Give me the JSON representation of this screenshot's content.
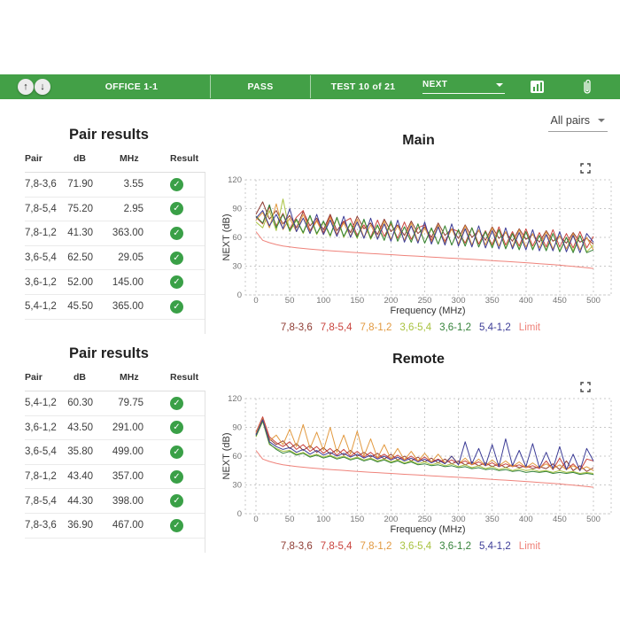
{
  "toolbar": {
    "office": "OFFICE 1-1",
    "status": "PASS",
    "test_counter": "TEST 10 of 21",
    "measurement_select": {
      "value": "NEXT"
    },
    "bg_color": "#43a047"
  },
  "icons": {
    "nav_up": "↑",
    "nav_down": "↓",
    "pass_check": "✓"
  },
  "pairs_filter": {
    "value": "All pairs"
  },
  "colors": {
    "accent_green": "#43a047",
    "pass_badge": "#3aa047",
    "limit_line": "#ef837b"
  },
  "tables": [
    {
      "title": "Pair results",
      "columns": [
        "Pair",
        "dB",
        "MHz",
        "Result"
      ],
      "rows": [
        {
          "pair": "7,8-3,6",
          "db": "71.90",
          "mhz": "3.55",
          "result": "pass"
        },
        {
          "pair": "7,8-5,4",
          "db": "75.20",
          "mhz": "2.95",
          "result": "pass"
        },
        {
          "pair": "7,8-1,2",
          "db": "41.30",
          "mhz": "363.00",
          "result": "pass"
        },
        {
          "pair": "3,6-5,4",
          "db": "62.50",
          "mhz": "29.05",
          "result": "pass"
        },
        {
          "pair": "3,6-1,2",
          "db": "52.00",
          "mhz": "145.00",
          "result": "pass"
        },
        {
          "pair": "5,4-1,2",
          "db": "45.50",
          "mhz": "365.00",
          "result": "pass"
        }
      ]
    },
    {
      "title": "Pair results",
      "columns": [
        "Pair",
        "dB",
        "MHz",
        "Result"
      ],
      "rows": [
        {
          "pair": "5,4-1,2",
          "db": "60.30",
          "mhz": "79.75",
          "result": "pass"
        },
        {
          "pair": "3,6-1,2",
          "db": "43.50",
          "mhz": "291.00",
          "result": "pass"
        },
        {
          "pair": "3,6-5,4",
          "db": "35.80",
          "mhz": "499.00",
          "result": "pass"
        },
        {
          "pair": "7,8-1,2",
          "db": "43.40",
          "mhz": "357.00",
          "result": "pass"
        },
        {
          "pair": "7,8-5,4",
          "db": "44.30",
          "mhz": "398.00",
          "result": "pass"
        },
        {
          "pair": "7,8-3,6",
          "db": "36.90",
          "mhz": "467.00",
          "result": "pass"
        }
      ]
    }
  ],
  "chart_data": [
    {
      "type": "line",
      "title": "Main",
      "xlabel": "Frequency (MHz)",
      "ylabel": "NEXT (dB)",
      "xlim": [
        0,
        500
      ],
      "ylim": [
        0,
        120
      ],
      "xticks": [
        0,
        50,
        100,
        150,
        200,
        250,
        300,
        350,
        400,
        450,
        500
      ],
      "yticks": [
        0,
        30,
        60,
        90,
        120
      ],
      "grid": "dotted",
      "legend_position": "bottom",
      "x": [
        0,
        10,
        20,
        30,
        40,
        50,
        60,
        70,
        80,
        90,
        100,
        110,
        120,
        130,
        140,
        150,
        160,
        170,
        180,
        190,
        200,
        210,
        220,
        230,
        240,
        250,
        260,
        270,
        280,
        290,
        300,
        310,
        320,
        330,
        340,
        350,
        360,
        370,
        380,
        390,
        400,
        410,
        420,
        430,
        440,
        450,
        460,
        470,
        480,
        490,
        500
      ],
      "series": [
        {
          "name": "7,8-3,6",
          "color": "#8e3b32",
          "values": [
            84,
            97,
            79,
            88,
            74,
            83,
            70,
            87,
            72,
            80,
            68,
            84,
            67,
            77,
            65,
            82,
            69,
            75,
            63,
            79,
            66,
            73,
            62,
            77,
            64,
            71,
            60,
            75,
            62,
            69,
            59,
            73,
            60,
            67,
            57,
            71,
            59,
            65,
            56,
            69,
            58,
            63,
            55,
            67,
            56,
            61,
            54,
            65,
            55,
            59,
            53
          ]
        },
        {
          "name": "7,8-5,4",
          "color": "#c9423c",
          "values": [
            81,
            74,
            92,
            72,
            85,
            69,
            81,
            88,
            67,
            78,
            65,
            82,
            63,
            76,
            80,
            62,
            73,
            60,
            78,
            61,
            74,
            59,
            76,
            58,
            70,
            73,
            57,
            71,
            56,
            69,
            66,
            54,
            70,
            53,
            67,
            52,
            71,
            52,
            66,
            51,
            69,
            51,
            65,
            50,
            68,
            50,
            64,
            49,
            66,
            49,
            61
          ]
        },
        {
          "name": "7,8-1,2",
          "color": "#e2993f",
          "values": [
            78,
            86,
            70,
            95,
            68,
            80,
            66,
            84,
            65,
            77,
            63,
            81,
            62,
            75,
            61,
            79,
            60,
            73,
            59,
            77,
            58,
            72,
            57,
            75,
            56,
            70,
            55,
            73,
            54,
            69,
            53,
            72,
            52,
            68,
            52,
            70,
            51,
            66,
            50,
            68,
            50,
            64,
            49,
            66,
            48,
            62,
            48,
            64,
            47,
            60,
            47
          ]
        },
        {
          "name": "3,6-5,4",
          "color": "#a8c23f",
          "values": [
            76,
            70,
            88,
            67,
            100,
            66,
            78,
            64,
            82,
            63,
            76,
            61,
            80,
            60,
            74,
            59,
            78,
            58,
            72,
            57,
            76,
            56,
            71,
            55,
            74,
            54,
            69,
            53,
            72,
            52,
            68,
            51,
            70,
            50,
            66,
            50,
            68,
            49,
            64,
            48,
            66,
            48,
            62,
            47,
            64,
            46,
            60,
            46,
            62,
            45,
            52
          ]
        },
        {
          "name": "3,6-1,2",
          "color": "#35823a",
          "values": [
            82,
            75,
            94,
            70,
            84,
            67,
            79,
            65,
            83,
            64,
            77,
            62,
            81,
            61,
            75,
            60,
            79,
            59,
            73,
            57,
            77,
            56,
            71,
            55,
            74,
            54,
            70,
            53,
            72,
            52,
            68,
            51,
            70,
            50,
            66,
            49,
            68,
            48,
            64,
            47,
            66,
            47,
            62,
            46,
            64,
            45,
            60,
            44,
            62,
            44,
            47
          ]
        },
        {
          "name": "5,4-1,2",
          "color": "#3c3c96",
          "values": [
            80,
            88,
            72,
            84,
            69,
            90,
            66,
            80,
            64,
            84,
            63,
            78,
            61,
            82,
            60,
            76,
            59,
            80,
            58,
            74,
            56,
            78,
            55,
            72,
            54,
            76,
            53,
            71,
            52,
            74,
            51,
            69,
            50,
            72,
            49,
            67,
            48,
            70,
            48,
            65,
            47,
            68,
            46,
            63,
            46,
            66,
            45,
            62,
            44,
            64,
            55
          ]
        },
        {
          "name": "Limit",
          "color": "#ef837b",
          "is_limit": true,
          "values": [
            66,
            57,
            54.5,
            52.5,
            51,
            50,
            49.2,
            48.5,
            47.8,
            47.2,
            46.6,
            46.1,
            45.6,
            45.1,
            44.6,
            44.1,
            43.7,
            43.2,
            42.8,
            42.4,
            42,
            41.5,
            41.1,
            40.7,
            40.3,
            39.9,
            39.5,
            39.1,
            38.7,
            38.3,
            37.9,
            37.5,
            37.1,
            36.7,
            36.3,
            35.8,
            35.4,
            35,
            34.5,
            34.1,
            33.6,
            33.1,
            32.6,
            32.1,
            31.6,
            31,
            30.4,
            29.8,
            29.1,
            28.4,
            27.6
          ]
        }
      ]
    },
    {
      "type": "line",
      "title": "Remote",
      "xlabel": "Frequency (MHz)",
      "ylabel": "NEXT (dB)",
      "xlim": [
        0,
        500
      ],
      "ylim": [
        0,
        120
      ],
      "xticks": [
        0,
        50,
        100,
        150,
        200,
        250,
        300,
        350,
        400,
        450,
        500
      ],
      "yticks": [
        0,
        30,
        60,
        90,
        120
      ],
      "grid": "dotted",
      "legend_position": "bottom",
      "x": [
        0,
        10,
        20,
        30,
        40,
        50,
        60,
        70,
        80,
        90,
        100,
        110,
        120,
        130,
        140,
        150,
        160,
        170,
        180,
        190,
        200,
        210,
        220,
        230,
        240,
        250,
        260,
        270,
        280,
        290,
        300,
        310,
        320,
        330,
        340,
        350,
        360,
        370,
        380,
        390,
        400,
        410,
        420,
        430,
        440,
        450,
        460,
        470,
        480,
        490,
        500
      ],
      "series": [
        {
          "name": "7,8-3,6",
          "color": "#8e3b32",
          "values": [
            83,
            100,
            78,
            72,
            76,
            68,
            73,
            66,
            71,
            64,
            69,
            62,
            67,
            61,
            66,
            60,
            64,
            59,
            63,
            57,
            62,
            56,
            60,
            55,
            59,
            54,
            58,
            53,
            57,
            52,
            55,
            51,
            54,
            50,
            53,
            49,
            52,
            48,
            51,
            48,
            50,
            47,
            49,
            47,
            52,
            46,
            55,
            45,
            50,
            44,
            48
          ]
        },
        {
          "name": "7,8-5,4",
          "color": "#c9423c",
          "values": [
            85,
            101,
            80,
            74,
            70,
            75,
            67,
            72,
            65,
            70,
            63,
            68,
            61,
            67,
            60,
            65,
            59,
            64,
            58,
            62,
            57,
            61,
            56,
            60,
            55,
            59,
            54,
            57,
            53,
            56,
            52,
            55,
            51,
            54,
            50,
            53,
            49,
            52,
            49,
            51,
            48,
            50,
            47,
            55,
            46,
            58,
            46,
            52,
            45,
            57,
            55
          ]
        },
        {
          "name": "7,8-1,2",
          "color": "#e2993f",
          "values": [
            84,
            99,
            76,
            82,
            72,
            88,
            70,
            93,
            68,
            85,
            66,
            90,
            64,
            82,
            62,
            86,
            60,
            78,
            58,
            72,
            57,
            68,
            56,
            65,
            55,
            63,
            54,
            62,
            53,
            60,
            52,
            58,
            51,
            57,
            50,
            56,
            50,
            55,
            49,
            54,
            48,
            53,
            48,
            52,
            47,
            51,
            46,
            50,
            46,
            49,
            45
          ]
        },
        {
          "name": "3,6-5,4",
          "color": "#a8c23f",
          "values": [
            80,
            96,
            72,
            68,
            65,
            66,
            62,
            64,
            60,
            62,
            59,
            61,
            58,
            60,
            57,
            59,
            56,
            58,
            55,
            57,
            54,
            56,
            53,
            55,
            52,
            54,
            51,
            53,
            50,
            52,
            49,
            51,
            48,
            50,
            47,
            49,
            46,
            48,
            45,
            47,
            45,
            46,
            44,
            45,
            43,
            45,
            43,
            44,
            42,
            43,
            42
          ]
        },
        {
          "name": "3,6-1,2",
          "color": "#35823a",
          "values": [
            81,
            97,
            73,
            67,
            63,
            65,
            61,
            63,
            59,
            61,
            58,
            60,
            57,
            59,
            56,
            58,
            55,
            57,
            54,
            56,
            53,
            55,
            52,
            54,
            51,
            52,
            50,
            51,
            49,
            50,
            48,
            49,
            47,
            48,
            46,
            47,
            45,
            46,
            44,
            45,
            43,
            44,
            43,
            44,
            42,
            43,
            42,
            43,
            41,
            42,
            41
          ]
        },
        {
          "name": "5,4-1,2",
          "color": "#3c3c96",
          "values": [
            82,
            98,
            75,
            70,
            67,
            69,
            64,
            67,
            62,
            66,
            61,
            64,
            60,
            63,
            59,
            62,
            58,
            61,
            57,
            60,
            56,
            59,
            55,
            58,
            54,
            57,
            53,
            56,
            52,
            60,
            51,
            75,
            52,
            68,
            50,
            72,
            49,
            78,
            50,
            66,
            49,
            73,
            48,
            64,
            47,
            70,
            46,
            62,
            45,
            68,
            55
          ]
        },
        {
          "name": "Limit",
          "color": "#ef837b",
          "is_limit": true,
          "values": [
            66,
            57,
            54.5,
            52.5,
            51,
            50,
            49.2,
            48.5,
            47.8,
            47.2,
            46.6,
            46.1,
            45.6,
            45.1,
            44.6,
            44.1,
            43.7,
            43.2,
            42.8,
            42.4,
            42,
            41.5,
            41.1,
            40.7,
            40.3,
            39.9,
            39.5,
            39.1,
            38.7,
            38.3,
            37.9,
            37.5,
            37.1,
            36.7,
            36.3,
            35.8,
            35.4,
            35,
            34.5,
            34.1,
            33.6,
            33.1,
            32.6,
            32.1,
            31.6,
            31,
            30.4,
            29.8,
            29.1,
            28.4,
            27.6
          ]
        }
      ]
    }
  ]
}
